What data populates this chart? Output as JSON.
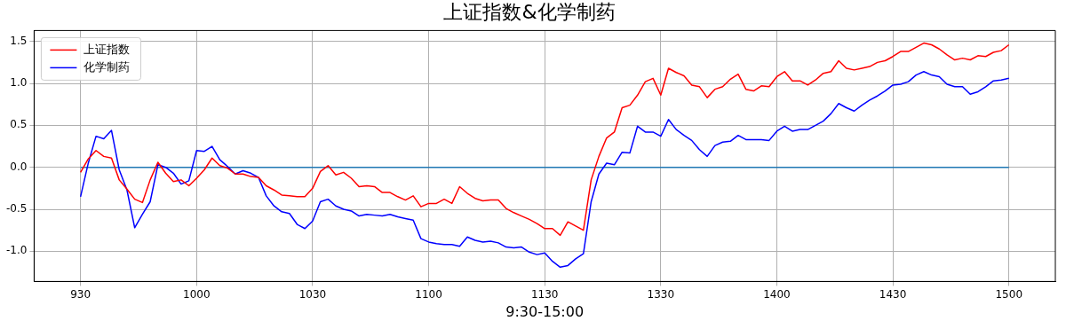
{
  "chart_data": {
    "type": "line",
    "title": "上证指数&化学制药",
    "xlabel": "9:30-15:00",
    "categories": [
      "930",
      null,
      null,
      null,
      null,
      null,
      null,
      null,
      null,
      null,
      null,
      null,
      null,
      null,
      null,
      "1000",
      null,
      null,
      null,
      null,
      null,
      null,
      null,
      null,
      null,
      null,
      null,
      null,
      null,
      null,
      "1030",
      null,
      null,
      null,
      null,
      null,
      null,
      null,
      null,
      null,
      null,
      null,
      null,
      null,
      null,
      "1100",
      null,
      null,
      null,
      null,
      null,
      null,
      null,
      null,
      null,
      null,
      null,
      null,
      null,
      null,
      "1130",
      null,
      null,
      null,
      null,
      null,
      null,
      null,
      null,
      null,
      null,
      null,
      null,
      null,
      null,
      "1330",
      null,
      null,
      null,
      null,
      null,
      null,
      null,
      null,
      null,
      null,
      null,
      null,
      null,
      null,
      "1400",
      null,
      null,
      null,
      null,
      null,
      null,
      null,
      null,
      null,
      null,
      null,
      null,
      null,
      null,
      "1430",
      null,
      null,
      null,
      null,
      null,
      null,
      null,
      null,
      null,
      null,
      null,
      null,
      null,
      null,
      "1500"
    ],
    "ylim": [
      -1.36,
      1.63
    ],
    "yticks": [
      {
        "value": -1,
        "label": "-1.0"
      },
      {
        "value": -0.5,
        "label": "-0.5"
      },
      {
        "value": 0,
        "label": "0.0"
      },
      {
        "value": 0.5,
        "label": "0.5"
      },
      {
        "value": 1,
        "label": "1.0"
      },
      {
        "value": 1.5,
        "label": "1.5"
      }
    ],
    "grid": true,
    "legend": "top left",
    "series": [
      {
        "name": "上证指数",
        "color": "#ff0000",
        "values": [
          -0.06,
          0.1,
          0.2,
          0.13,
          0.11,
          -0.15,
          -0.26,
          -0.38,
          -0.42,
          -0.15,
          0.06,
          -0.07,
          -0.17,
          -0.15,
          -0.22,
          -0.13,
          -0.03,
          0.11,
          0.02,
          -0.01,
          -0.08,
          -0.08,
          -0.11,
          -0.12,
          -0.22,
          -0.27,
          -0.33,
          -0.34,
          -0.35,
          -0.35,
          -0.25,
          -0.05,
          0.02,
          -0.09,
          -0.06,
          -0.13,
          -0.23,
          -0.22,
          -0.23,
          -0.3,
          -0.3,
          -0.35,
          -0.39,
          -0.34,
          -0.47,
          -0.43,
          -0.43,
          -0.38,
          -0.43,
          -0.23,
          -0.31,
          -0.37,
          -0.4,
          -0.39,
          -0.39,
          -0.49,
          -0.54,
          -0.58,
          -0.62,
          -0.67,
          -0.73,
          -0.73,
          -0.81,
          -0.65,
          -0.7,
          -0.75,
          -0.15,
          0.13,
          0.35,
          0.42,
          0.71,
          0.74,
          0.86,
          1.02,
          1.06,
          0.86,
          1.18,
          1.13,
          1.09,
          0.98,
          0.96,
          0.83,
          0.93,
          0.96,
          1.05,
          1.11,
          0.93,
          0.91,
          0.97,
          0.96,
          1.08,
          1.14,
          1.03,
          1.03,
          0.98,
          1.04,
          1.12,
          1.14,
          1.27,
          1.18,
          1.16,
          1.18,
          1.2,
          1.25,
          1.27,
          1.32,
          1.38,
          1.38,
          1.43,
          1.48,
          1.46,
          1.41,
          1.34,
          1.28,
          1.3,
          1.28,
          1.33,
          1.32,
          1.37,
          1.39,
          1.46
        ]
      },
      {
        "name": "化学制药",
        "color": "#0000ff",
        "values": [
          -0.35,
          0.05,
          0.37,
          0.34,
          0.44,
          -0.03,
          -0.27,
          -0.72,
          -0.56,
          -0.41,
          0.03,
          0.0,
          -0.07,
          -0.2,
          -0.16,
          0.2,
          0.19,
          0.25,
          0.09,
          0.01,
          -0.08,
          -0.04,
          -0.07,
          -0.12,
          -0.34,
          -0.46,
          -0.53,
          -0.55,
          -0.68,
          -0.73,
          -0.64,
          -0.41,
          -0.38,
          -0.46,
          -0.5,
          -0.52,
          -0.58,
          -0.56,
          -0.57,
          -0.58,
          -0.56,
          -0.59,
          -0.61,
          -0.63,
          -0.85,
          -0.89,
          -0.91,
          -0.92,
          -0.92,
          -0.94,
          -0.83,
          -0.87,
          -0.89,
          -0.88,
          -0.9,
          -0.95,
          -0.96,
          -0.95,
          -1.01,
          -1.04,
          -1.02,
          -1.12,
          -1.19,
          -1.17,
          -1.09,
          -1.03,
          -0.41,
          -0.08,
          0.05,
          0.03,
          0.18,
          0.17,
          0.49,
          0.42,
          0.42,
          0.37,
          0.57,
          0.45,
          0.38,
          0.32,
          0.21,
          0.13,
          0.26,
          0.3,
          0.31,
          0.38,
          0.33,
          0.33,
          0.33,
          0.32,
          0.43,
          0.49,
          0.43,
          0.45,
          0.45,
          0.5,
          0.55,
          0.64,
          0.76,
          0.71,
          0.67,
          0.74,
          0.8,
          0.85,
          0.91,
          0.98,
          0.99,
          1.02,
          1.1,
          1.14,
          1.1,
          1.08,
          0.99,
          0.96,
          0.96,
          0.87,
          0.9,
          0.96,
          1.03,
          1.04,
          1.06
        ]
      },
      {
        "color": "#1f77b4",
        "values": [
          0,
          0,
          0,
          0,
          0,
          0,
          0,
          0,
          0,
          0,
          0,
          0,
          0,
          0,
          0,
          0,
          0,
          0,
          0,
          0,
          0,
          0,
          0,
          0,
          0,
          0,
          0,
          0,
          0,
          0,
          0,
          0,
          0,
          0,
          0,
          0,
          0,
          0,
          0,
          0,
          0,
          0,
          0,
          0,
          0,
          0,
          0,
          0,
          0,
          0,
          0,
          0,
          0,
          0,
          0,
          0,
          0,
          0,
          0,
          0,
          0,
          0,
          0,
          0,
          0,
          0,
          0,
          0,
          0,
          0,
          0,
          0,
          0,
          0,
          0,
          0,
          0,
          0,
          0,
          0,
          0,
          0,
          0,
          0,
          0,
          0,
          0,
          0,
          0,
          0,
          0,
          0,
          0,
          0,
          0,
          0,
          0,
          0,
          0,
          0,
          0,
          0,
          0,
          0,
          0,
          0,
          0,
          0,
          0,
          0,
          0,
          0,
          0,
          0,
          0,
          0,
          0,
          0,
          0,
          0,
          0
        ]
      }
    ]
  }
}
